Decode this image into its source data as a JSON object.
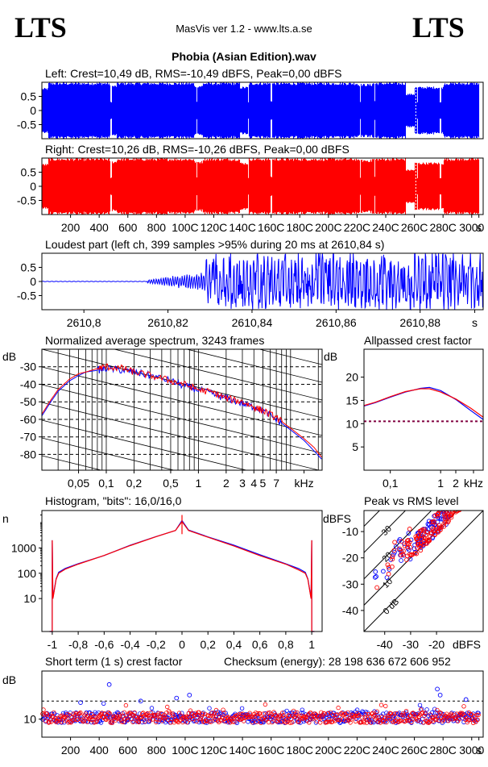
{
  "header": {
    "logo_left": "LTS",
    "logo_right": "LTS",
    "app_title": "MasVis ver 1.2 - www.lts.a.se",
    "file_name": "Phobia (Asian Edition).wav"
  },
  "colors": {
    "left": "#0000ff",
    "right": "#ff0000",
    "grid": "#000000",
    "ref": "#000080"
  },
  "chart_data": [
    {
      "id": "left-waveform",
      "type": "area",
      "title": "Left: Crest=10,49 dB, RMS=-10,49 dBFS, Peak=0,00 dBFS",
      "yticks": [
        "0.5",
        "0",
        "-0.5"
      ],
      "ylim": [
        -1,
        1
      ],
      "xlim": [
        0,
        3080
      ],
      "color": "#0000ff",
      "amplitude_segments": [
        [
          0,
          40,
          0.8
        ],
        [
          40,
          470,
          1.0
        ],
        [
          470,
          520,
          0.9
        ],
        [
          520,
          1060,
          1.0
        ],
        [
          1060,
          1120,
          0.9
        ],
        [
          1120,
          1380,
          1.0
        ],
        [
          1380,
          1440,
          0.85
        ],
        [
          1440,
          2200,
          1.0
        ],
        [
          2200,
          2300,
          0.95
        ],
        [
          2300,
          2540,
          1.0
        ],
        [
          2540,
          2600,
          0.6
        ],
        [
          2600,
          2800,
          0.85
        ],
        [
          2800,
          3050,
          1.0
        ]
      ],
      "gaps_s": [
        480,
        1080,
        1440,
        1600,
        2220,
        2320,
        2620,
        2780
      ]
    },
    {
      "id": "right-waveform",
      "type": "area",
      "title": "Right: Crest=10,26 dB, RMS=-10,26 dBFS, Peak=0,00 dBFS",
      "yticks": [
        "0.5",
        "0",
        "-0.5"
      ],
      "ylim": [
        -1,
        1
      ],
      "xlim": [
        0,
        3080
      ],
      "color": "#ff0000",
      "xticks": [
        "200",
        "400",
        "600",
        "800",
        "100C",
        "120C",
        "140C",
        "160C",
        "180C",
        "200C",
        "220C",
        "240C",
        "260C",
        "280C",
        "3000",
        "s"
      ],
      "xtick_values": [
        200,
        400,
        600,
        800,
        1000,
        1200,
        1400,
        1600,
        1800,
        2000,
        2200,
        2400,
        2600,
        2800,
        3000,
        3050
      ],
      "amplitude_segments": [
        [
          0,
          40,
          0.8
        ],
        [
          40,
          470,
          1.0
        ],
        [
          470,
          520,
          0.9
        ],
        [
          520,
          1060,
          1.0
        ],
        [
          1060,
          1120,
          0.9
        ],
        [
          1120,
          1380,
          1.0
        ],
        [
          1380,
          1440,
          0.85
        ],
        [
          1440,
          2200,
          1.0
        ],
        [
          2200,
          2300,
          0.95
        ],
        [
          2300,
          2540,
          1.0
        ],
        [
          2540,
          2600,
          0.6
        ],
        [
          2600,
          2800,
          0.85
        ],
        [
          2800,
          3050,
          1.0
        ]
      ],
      "gaps_s": [
        480,
        1080,
        1440,
        1600,
        2220,
        2320,
        2620,
        2780
      ]
    },
    {
      "id": "loudest-part",
      "type": "line",
      "title": "Loudest part (left  ch, 399 samples >95% during 20 ms at 2610,84 s)",
      "yticks": [
        "0.5",
        "0",
        "-0.5"
      ],
      "ylim": [
        -1,
        1
      ],
      "xlim": [
        2610.79,
        2610.895
      ],
      "xticks": [
        "2610,8",
        "2610,82",
        "2610,84",
        "2610,86",
        "2610,88",
        "s"
      ],
      "xtick_values": [
        2610.8,
        2610.82,
        2610.84,
        2610.86,
        2610.88,
        2610.893
      ],
      "quiet_until": 2610.815,
      "loud_from": 2610.829,
      "color": "#0000ff"
    },
    {
      "id": "spectrum",
      "type": "line",
      "title": "Normalized average spectrum, 3243 frames",
      "ylabel": "dB",
      "yticks": [
        "-30",
        "-40",
        "-50",
        "-60",
        "-70",
        "-80"
      ],
      "ylim": [
        -89,
        -20
      ],
      "xlim": [
        0.02,
        22
      ],
      "xscale": "log",
      "xticks": [
        "0,05",
        "0,1",
        "0,2",
        "0,5",
        "1",
        "2",
        "3",
        "4",
        "5",
        "7",
        "kHz"
      ],
      "xtick_values": [
        0.05,
        0.1,
        0.2,
        0.5,
        1,
        2,
        3,
        4,
        5,
        7,
        14
      ],
      "grid": true,
      "series": [
        {
          "color": "#0000ff",
          "x": [
            0.02,
            0.025,
            0.03,
            0.04,
            0.05,
            0.06,
            0.08,
            0.1,
            0.15,
            0.2,
            0.3,
            0.5,
            0.7,
            1,
            1.5,
            2,
            3,
            4,
            5,
            7,
            10,
            14,
            18,
            22
          ],
          "y": [
            -58,
            -50,
            -44,
            -38,
            -35,
            -33,
            -32,
            -31,
            -32,
            -33,
            -35,
            -38,
            -41,
            -43,
            -46,
            -48,
            -51,
            -53,
            -55,
            -60,
            -66,
            -72,
            -78,
            -83
          ]
        },
        {
          "color": "#ff0000",
          "x": [
            0.02,
            0.025,
            0.03,
            0.04,
            0.05,
            0.06,
            0.08,
            0.1,
            0.15,
            0.2,
            0.3,
            0.5,
            0.7,
            1,
            1.5,
            2,
            3,
            4,
            5,
            7,
            10,
            14,
            18,
            22
          ],
          "y": [
            -57,
            -49,
            -43,
            -37,
            -34,
            -33,
            -31,
            -30,
            -31,
            -33,
            -35,
            -38,
            -40,
            -43,
            -45,
            -48,
            -50,
            -53,
            -55,
            -59,
            -65,
            -71,
            -76,
            -82
          ]
        }
      ]
    },
    {
      "id": "allpassed-crest",
      "type": "line",
      "title": "Allpassed crest factor",
      "ylabel": "dB",
      "yticks": [
        "20",
        "15",
        "10",
        "5"
      ],
      "ylim": [
        0,
        26
      ],
      "xlim": [
        0.03,
        7
      ],
      "xscale": "log",
      "xticks": [
        "0,1",
        "1",
        "2",
        "kHz"
      ],
      "xtick_values": [
        0.1,
        1,
        2,
        4.5
      ],
      "reference_level": 10.5,
      "series": [
        {
          "color": "#0000ff",
          "x": [
            0.03,
            0.05,
            0.1,
            0.2,
            0.4,
            0.6,
            1,
            2,
            4,
            7
          ],
          "y": [
            13.8,
            14.5,
            15.7,
            16.8,
            17.6,
            17.8,
            17.1,
            15.2,
            12.8,
            10.9
          ]
        },
        {
          "color": "#ff0000",
          "x": [
            0.03,
            0.05,
            0.1,
            0.2,
            0.4,
            0.6,
            1,
            2,
            4,
            7
          ],
          "y": [
            13.9,
            14.6,
            15.8,
            16.9,
            17.5,
            17.5,
            16.8,
            15.3,
            13.3,
            11.4
          ]
        }
      ]
    },
    {
      "id": "histogram",
      "type": "line",
      "title": "Histogram, \"bits\": 16,0/16,0",
      "ylabel": "n",
      "yscale": "log",
      "yticks": [
        "1000",
        "100",
        "10"
      ],
      "ylim": [
        0.5,
        30000
      ],
      "xlim": [
        -1.08,
        1.08
      ],
      "xticks": [
        "-1",
        "-0,8",
        "-0,6",
        "-0,4",
        "-0,2",
        "0",
        "0,2",
        "0,4",
        "0,6",
        "0,8",
        "1"
      ],
      "xtick_values": [
        -1,
        -0.8,
        -0.6,
        -0.4,
        -0.2,
        0,
        0.2,
        0.4,
        0.6,
        0.8,
        1
      ],
      "series": [
        {
          "color": "#0000ff",
          "x": [
            -0.99,
            -0.97,
            -0.95,
            -0.9,
            -0.8,
            -0.6,
            -0.4,
            -0.2,
            -0.05,
            0,
            0.05,
            0.2,
            0.4,
            0.6,
            0.8,
            0.9,
            0.95,
            0.97,
            0.99
          ],
          "y": [
            15,
            60,
            110,
            150,
            230,
            520,
            1300,
            2800,
            5000,
            12000,
            5000,
            2800,
            1300,
            520,
            230,
            150,
            110,
            60,
            15
          ]
        },
        {
          "color": "#ff0000",
          "x": [
            -0.99,
            -0.97,
            -0.95,
            -0.9,
            -0.8,
            -0.6,
            -0.4,
            -0.2,
            -0.05,
            0,
            0.05,
            0.2,
            0.4,
            0.6,
            0.8,
            0.9,
            0.95,
            0.97,
            0.99
          ],
          "y": [
            14,
            58,
            100,
            140,
            220,
            500,
            1250,
            2700,
            4900,
            11000,
            4900,
            2700,
            1250,
            500,
            220,
            140,
            100,
            58,
            14
          ]
        }
      ],
      "edge_spikes": [
        -1,
        1
      ],
      "edge_spike_value": 2000
    },
    {
      "id": "peak-vs-rms",
      "type": "scatter",
      "title": "Peak vs RMS level",
      "ylabel": "dBFS",
      "xlabel": "dBFS",
      "yticks": [
        "-10",
        "-20",
        "-30",
        "-40"
      ],
      "ylim": [
        -48,
        -2
      ],
      "xticks": [
        "-40",
        "-30",
        "-20"
      ],
      "xtick_values": [
        -40,
        -30,
        -20
      ],
      "xlim": [
        -48,
        -2
      ],
      "diagonal_labels": [
        "0 dB",
        "10",
        "20",
        "30",
        "40"
      ],
      "diagonal_offsets": [
        0,
        10,
        20,
        30,
        40
      ],
      "clusters": [
        {
          "color": "#0000ff",
          "rms_range": [
            -45,
            -15
          ],
          "count": 90
        },
        {
          "color": "#ff0000",
          "rms_range": [
            -45,
            -8
          ],
          "count": 170
        }
      ]
    },
    {
      "id": "short-term-crest",
      "type": "scatter",
      "title": "Short term (1 s) crest factor",
      "checksum": "Checksum (energy):  28 198 636 672 606 952",
      "ylabel": "dB",
      "yticks": [
        "10"
      ],
      "ylim": [
        4,
        26
      ],
      "xlim": [
        0,
        3080
      ],
      "reference_level": 16,
      "xticks": [
        "200",
        "400",
        "600",
        "800",
        "100C",
        "120C",
        "140C",
        "160C",
        "180C",
        "200C",
        "220C",
        "240C",
        "260C",
        "280C",
        "3000",
        "s"
      ],
      "xtick_values": [
        200,
        400,
        600,
        800,
        1000,
        1200,
        1400,
        1600,
        1800,
        2000,
        2200,
        2400,
        2600,
        2800,
        3000,
        3050
      ],
      "baseline_db": 10.5,
      "spread_db": 2.5,
      "outliers": [
        [
          270,
          15.5
        ],
        [
          470,
          21.5
        ],
        [
          690,
          16
        ],
        [
          940,
          17
        ],
        [
          1030,
          18
        ],
        [
          2760,
          20
        ],
        [
          2780,
          18
        ],
        [
          2960,
          16.5
        ]
      ]
    }
  ]
}
